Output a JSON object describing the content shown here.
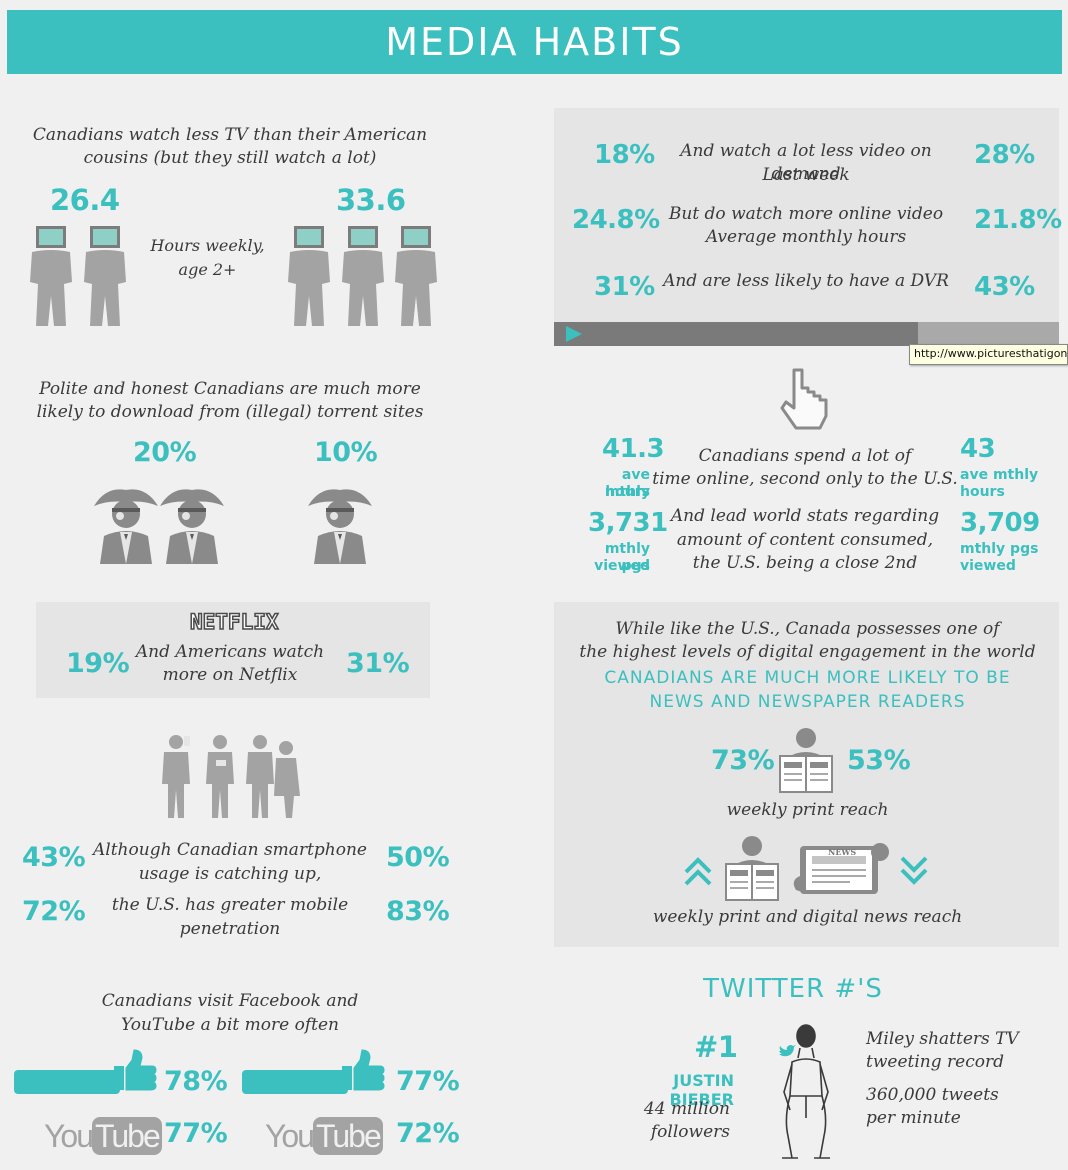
{
  "header": {
    "title": "MEDIA HABITS"
  },
  "tv": {
    "heading": "Canadians watch less TV than their American cousins (but they still watch a lot)",
    "canada_value": "26.4",
    "us_value": "33.6",
    "middle_label_1": "Hours weekly,",
    "middle_label_2": "age 2+"
  },
  "video_panel": {
    "rows": [
      {
        "left": "18%",
        "text_1": "And watch a lot less video on demand",
        "text_2": "Last week",
        "right": "28%"
      },
      {
        "left": "24.8%",
        "text_1": "But do watch more online video",
        "text_2": "Average monthly hours",
        "right": "21.8%"
      },
      {
        "left": "31%",
        "text_1": "And are less likely to have a DVR",
        "text_2": "",
        "right": "43%"
      }
    ],
    "progress_fraction": 0.72,
    "tooltip": "http://www.picturesthatigone"
  },
  "torrent": {
    "heading_1": "Polite and honest Canadians are much more",
    "heading_2": "likely to download from (illegal) torrent sites",
    "canada_value": "20%",
    "us_value": "10%"
  },
  "online": {
    "left_value_1": "41.3",
    "left_caption_1": "ave mthly",
    "left_caption_2": "hours",
    "right_value_1": "43",
    "right_caption_1": "ave mthly",
    "right_caption_2": "hours",
    "text_1": "Canadians spend a lot of",
    "text_2": "time online, second only to the U.S.",
    "left_value_2": "3,731",
    "left_caption_3": "mthly pgs",
    "left_caption_4": "viewed",
    "right_value_2": "3,709",
    "right_caption_3": "mthly pgs",
    "right_caption_4": "viewed",
    "text_3": "And lead world stats regarding",
    "text_4": "amount of content consumed,",
    "text_5": "the U.S. being a close 2nd"
  },
  "netflix": {
    "logo": "NETFLIX",
    "left_value": "19%",
    "text_1": "And Americans watch",
    "text_2": "more on Netflix",
    "right_value": "31%"
  },
  "news": {
    "heading_1": "While like the U.S., Canada possesses one of",
    "heading_2": "the highest levels of digital engagement in the world",
    "highlight_1": "CANADIANS ARE MUCH MORE LIKELY TO BE",
    "highlight_2": "NEWS AND NEWSPAPER READERS",
    "left_value": "73%",
    "right_value": "53%",
    "print_label": "weekly print reach",
    "digital_label": "weekly print and digital news reach",
    "paper_label": "NEWS"
  },
  "mobile": {
    "row1_left": "43%",
    "row1_text_1": "Although Canadian smartphone",
    "row1_text_2": "usage is catching up,",
    "row1_right": "50%",
    "row2_left": "72%",
    "row2_text_1": "the U.S. has greater mobile",
    "row2_text_2": "penetration",
    "row2_right": "83%"
  },
  "social": {
    "heading_1": "Canadians visit Facebook and",
    "heading_2": "YouTube a bit more often",
    "fb_canada": "78%",
    "fb_us": "77%",
    "yt_canada": "77%",
    "yt_us": "72%",
    "yt_you": "You",
    "yt_tube": "Tube"
  },
  "twitter": {
    "heading": "TWITTER #'S",
    "rank": "#1",
    "name": "JUSTIN BIEBER",
    "followers_1": "44 million",
    "followers_2": "followers",
    "miley_1": "Miley shatters TV",
    "miley_2": "tweeting record",
    "tweets_1": "360,000 tweets",
    "tweets_2": "per minute"
  },
  "colors": {
    "accent": "#3bbfbf",
    "grey": "#a3a3a3",
    "panel": "#e4e5e4"
  }
}
